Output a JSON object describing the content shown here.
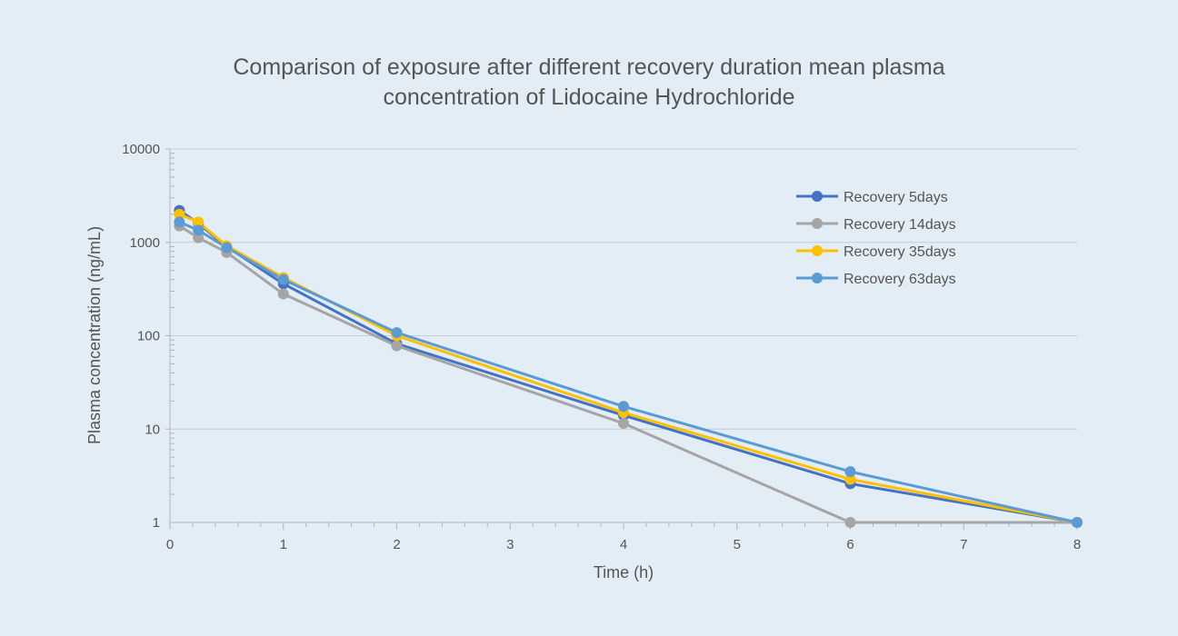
{
  "chart_data": {
    "type": "line",
    "title_lines": [
      "Comparison of exposure after different recovery duration mean plasma",
      "concentration of Lidocaine Hydrochloride"
    ],
    "xlabel": "Time (h)",
    "ylabel": "Plasma concentration (ng/mL)",
    "x_scale": "linear",
    "y_scale": "log",
    "xlim": [
      0,
      8
    ],
    "ylim": [
      1,
      10000
    ],
    "x_ticks": [
      "0",
      "1",
      "2",
      "3",
      "4",
      "5",
      "6",
      "7",
      "8"
    ],
    "y_ticks": [
      "1",
      "10",
      "100",
      "1000",
      "10000"
    ],
    "grid": "horizontal",
    "legend_position": "top-right",
    "series": [
      {
        "name": "Recovery 5days",
        "color": "#4472c4",
        "x": [
          0.083,
          0.25,
          0.5,
          1,
          2,
          4,
          6,
          8
        ],
        "y": [
          2200,
          1600,
          900,
          360,
          82,
          14,
          2.6,
          1
        ]
      },
      {
        "name": "Recovery 14days",
        "color": "#a5a5a5",
        "x": [
          0.083,
          0.25,
          0.5,
          1,
          2,
          4,
          6,
          8
        ],
        "y": [
          1500,
          1120,
          780,
          280,
          78,
          11.5,
          1,
          1
        ]
      },
      {
        "name": "Recovery 35days",
        "color": "#ffc000",
        "x": [
          0.083,
          0.25,
          0.5,
          1,
          2,
          4,
          6,
          8
        ],
        "y": [
          2000,
          1650,
          920,
          420,
          100,
          15,
          2.9,
          1
        ]
      },
      {
        "name": "Recovery 63days",
        "color": "#5b9bd5",
        "x": [
          0.083,
          0.25,
          0.5,
          1,
          2,
          4,
          6,
          8
        ],
        "y": [
          1650,
          1350,
          880,
          400,
          108,
          17.5,
          3.5,
          1
        ]
      }
    ]
  }
}
